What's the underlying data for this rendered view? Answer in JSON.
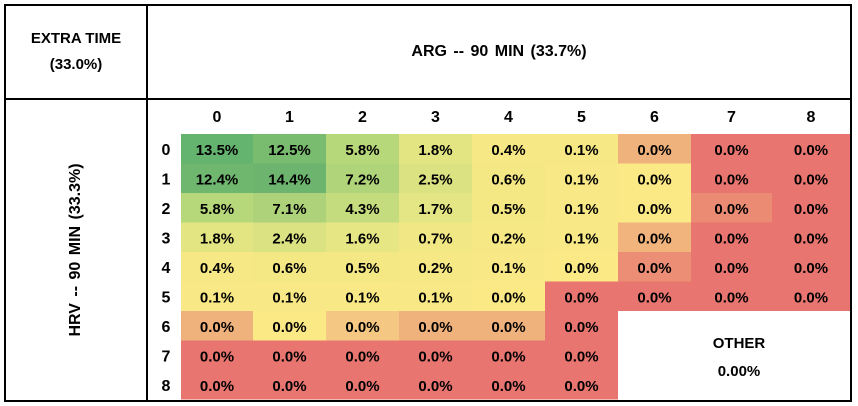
{
  "corner": {
    "line1": "EXTRA TIME",
    "line2": "(33.0%)"
  },
  "column_title": "ARG -- 90 MIN  (33.7%)",
  "row_title": "HRV -- 90 MIN  (33.3%)",
  "other": {
    "label": "OTHER",
    "value": "0.00%"
  },
  "chart_data": {
    "type": "heatmap",
    "x_categories": [
      "0",
      "1",
      "2",
      "3",
      "4",
      "5",
      "6",
      "7",
      "8"
    ],
    "y_categories": [
      "0",
      "1",
      "2",
      "3",
      "4",
      "5",
      "6",
      "7",
      "8"
    ],
    "cells": [
      [
        "13.5%",
        "12.5%",
        "5.8%",
        "1.8%",
        "0.4%",
        "0.1%",
        "0.0%",
        "0.0%",
        "0.0%"
      ],
      [
        "12.4%",
        "14.4%",
        "7.2%",
        "2.5%",
        "0.6%",
        "0.1%",
        "0.0%",
        "0.0%",
        "0.0%"
      ],
      [
        "5.8%",
        "7.1%",
        "4.3%",
        "1.7%",
        "0.5%",
        "0.1%",
        "0.0%",
        "0.0%",
        "0.0%"
      ],
      [
        "1.8%",
        "2.4%",
        "1.6%",
        "0.7%",
        "0.2%",
        "0.1%",
        "0.0%",
        "0.0%",
        "0.0%"
      ],
      [
        "0.4%",
        "0.6%",
        "0.5%",
        "0.2%",
        "0.1%",
        "0.0%",
        "0.0%",
        "0.0%",
        "0.0%"
      ],
      [
        "0.1%",
        "0.1%",
        "0.1%",
        "0.1%",
        "0.0%",
        "0.0%",
        "0.0%",
        "0.0%",
        "0.0%"
      ],
      [
        "0.0%",
        "0.0%",
        "0.0%",
        "0.0%",
        "0.0%",
        "0.0%",
        null,
        null,
        null
      ],
      [
        "0.0%",
        "0.0%",
        "0.0%",
        "0.0%",
        "0.0%",
        "0.0%",
        null,
        null,
        null
      ],
      [
        "0.0%",
        "0.0%",
        "0.0%",
        "0.0%",
        "0.0%",
        "0.0%",
        null,
        null,
        null
      ]
    ],
    "cell_colors": [
      [
        "#64b36e",
        "#79bb6f",
        "#b6d77a",
        "#e3e583",
        "#f6e885",
        "#f6e885",
        "#f0b27d",
        "#e8756f",
        "#e8756f"
      ],
      [
        "#6fb76f",
        "#6db46f",
        "#b0d47a",
        "#dbe282",
        "#f4e885",
        "#f8e986",
        "#fbe986",
        "#e8756f",
        "#e8756f"
      ],
      [
        "#b6d77a",
        "#aed27a",
        "#c5dc7e",
        "#e4e584",
        "#f4e885",
        "#f8e986",
        "#fbe986",
        "#eb8b74",
        "#e8756f"
      ],
      [
        "#e3e583",
        "#dbe282",
        "#e6e684",
        "#f1e885",
        "#f6e885",
        "#f8e986",
        "#f1b47d",
        "#e8756f",
        "#e8756f"
      ],
      [
        "#f6e885",
        "#f4e885",
        "#f4e885",
        "#f6e885",
        "#f8e986",
        "#fbe986",
        "#ec8e75",
        "#e8756f",
        "#e8756f"
      ],
      [
        "#f8e986",
        "#f8e986",
        "#f8e986",
        "#f8e986",
        "#fbe986",
        "#e8756f",
        "#e8756f",
        "#e8756f",
        "#e8756f"
      ],
      [
        "#f0b27d",
        "#fbe986",
        "#f4c882",
        "#f0b27d",
        "#f0b27d",
        "#e8756f",
        null,
        null,
        null
      ],
      [
        "#e8756f",
        "#e8756f",
        "#e8756f",
        "#e8756f",
        "#e8756f",
        "#e8756f",
        null,
        null,
        null
      ],
      [
        "#e8756f",
        "#e8756f",
        "#e8756f",
        "#e8756f",
        "#e8756f",
        "#e8756f",
        null,
        null,
        null
      ]
    ]
  }
}
